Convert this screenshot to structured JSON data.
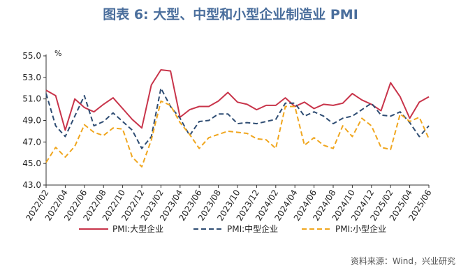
{
  "header": {
    "title": "图表 6:  大型、中型和小型企业制造业 PMI"
  },
  "source": "资料来源：Wind，兴业研究",
  "colors": {
    "large": "#c8344a",
    "medium": "#2f4d73",
    "small": "#f0a61e",
    "axis": "#333333"
  },
  "chart_data": {
    "type": "line",
    "title": "大型、中型和小型企业制造业 PMI",
    "ylabel_unit": "%",
    "ylim": [
      43.0,
      55.0
    ],
    "yticks": [
      "55.0",
      "53.0",
      "51.0",
      "49.0",
      "47.0",
      "45.0",
      "43.0"
    ],
    "grid": false,
    "legend_position": "bottom",
    "x": [
      "2022/02",
      "2022/03",
      "2022/04",
      "2022/05",
      "2022/06",
      "2022/07",
      "2022/08",
      "2022/09",
      "2022/10",
      "2022/11",
      "2022/12",
      "2023/01",
      "2023/02",
      "2023/03",
      "2023/04",
      "2023/05",
      "2023/06",
      "2023/07",
      "2023/08",
      "2023/09",
      "2023/10",
      "2023/11",
      "2023/12",
      "2024/01",
      "2024/02",
      "2024/03",
      "2024/04",
      "2024/05",
      "2024/06",
      "2024/07",
      "2024/08",
      "2024/09",
      "2024/10",
      "2024/11",
      "2024/12",
      "2025/01",
      "2025/02",
      "2025/03",
      "2025/04",
      "2025/05",
      "2025/06"
    ],
    "xtick_labels": [
      "2022/02",
      "2022/04",
      "2022/06",
      "2022/08",
      "2022/10",
      "2022/12",
      "2023/02",
      "2023/04",
      "2023/06",
      "2023/08",
      "2023/10",
      "2023/12",
      "2024/02",
      "2024/04",
      "2024/06",
      "2024/08",
      "2024/10",
      "2024/12",
      "2025/02",
      "2025/04",
      "2025/06"
    ],
    "series": [
      {
        "name": "PMI:大型企业",
        "key": "large",
        "style": "solid",
        "values": [
          51.8,
          51.3,
          48.1,
          51.0,
          50.2,
          49.8,
          50.5,
          51.1,
          50.1,
          49.1,
          48.3,
          52.3,
          53.7,
          53.6,
          49.3,
          50.0,
          50.3,
          50.3,
          50.8,
          51.6,
          50.7,
          50.5,
          50.0,
          50.4,
          50.4,
          51.1,
          50.3,
          50.7,
          50.1,
          50.5,
          50.4,
          50.6,
          51.5,
          50.9,
          50.5,
          49.9,
          52.5,
          51.2,
          49.2,
          50.7,
          51.2
        ]
      },
      {
        "name": "PMI:中型企业",
        "key": "medium",
        "style": "dashed",
        "values": [
          51.5,
          48.5,
          47.5,
          49.4,
          51.3,
          48.5,
          48.9,
          49.7,
          48.9,
          48.1,
          46.4,
          47.5,
          52.0,
          50.3,
          49.2,
          47.6,
          48.9,
          49.0,
          49.6,
          49.6,
          48.7,
          48.8,
          48.7,
          48.9,
          49.1,
          50.6,
          50.6,
          49.4,
          49.8,
          49.4,
          48.7,
          49.2,
          49.4,
          50.0,
          50.6,
          49.5,
          49.4,
          49.8,
          48.8,
          47.5,
          48.5
        ]
      },
      {
        "name": "PMI:小型企业",
        "key": "small",
        "style": "dashed",
        "values": [
          45.1,
          46.5,
          45.6,
          46.6,
          48.6,
          47.9,
          47.6,
          48.3,
          48.2,
          45.6,
          44.7,
          47.2,
          50.8,
          50.4,
          48.8,
          47.7,
          46.4,
          47.4,
          47.7,
          48.0,
          47.9,
          47.8,
          47.3,
          47.2,
          46.4,
          50.3,
          50.3,
          46.7,
          47.4,
          46.7,
          46.4,
          48.5,
          47.5,
          49.2,
          48.5,
          46.5,
          46.3,
          49.6,
          48.9,
          49.3,
          47.3
        ]
      }
    ]
  }
}
